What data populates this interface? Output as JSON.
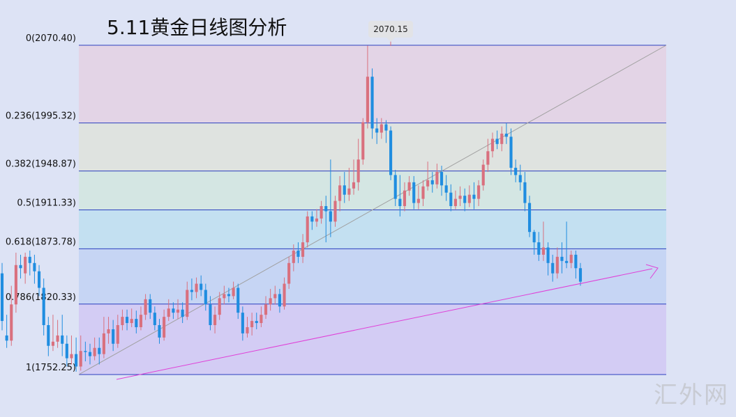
{
  "chart_data": {
    "type": "candlestick",
    "title": "5.11黄金日线图分析",
    "peak_label": "2070.15",
    "ylim": [
      1752.25,
      2070.4
    ],
    "fib_levels": [
      {
        "ratio": 0,
        "price": 2070.4,
        "label": "0(2070.40)",
        "band_color": "#e3d4e6"
      },
      {
        "ratio": 0.236,
        "price": 1995.32,
        "label": "0.236(1995.32)",
        "band_color": "#dfe3e0"
      },
      {
        "ratio": 0.382,
        "price": 1948.87,
        "label": "0.382(1948.87)",
        "band_color": "#d4e6e3"
      },
      {
        "ratio": 0.5,
        "price": 1911.33,
        "label": "0.5(1911.33)",
        "band_color": "#c3e0f1"
      },
      {
        "ratio": 0.618,
        "price": 1873.78,
        "label": "0.618(1873.78)",
        "band_color": "#c6d5f4"
      },
      {
        "ratio": 0.786,
        "price": 1820.33,
        "label": "0.786(1820.33)",
        "band_color": "#d3ccf4"
      },
      {
        "ratio": 1,
        "price": 1752.25,
        "label": "1(1752.25)",
        "band_color": null
      }
    ],
    "colors": {
      "up": "#d9707e",
      "down": "#1f8de0",
      "fib_line": "#2b3fbf",
      "trendline": "#e040d8",
      "diagonal": "#a0a0a0"
    },
    "candles": [
      [
        1850,
        1804,
        1860,
        1795
      ],
      [
        1790,
        1785,
        1810,
        1778
      ],
      [
        1785,
        1820,
        1838,
        1780
      ],
      [
        1820,
        1858,
        1870,
        1812
      ],
      [
        1858,
        1855,
        1868,
        1845
      ],
      [
        1850,
        1866,
        1870,
        1840
      ],
      [
        1866,
        1860,
        1872,
        1848
      ],
      [
        1860,
        1852,
        1868,
        1840
      ],
      [
        1852,
        1836,
        1858,
        1828
      ],
      [
        1836,
        1800,
        1845,
        1790
      ],
      [
        1800,
        1780,
        1808,
        1770
      ],
      [
        1780,
        1784,
        1810,
        1775
      ],
      [
        1784,
        1790,
        1805,
        1778
      ],
      [
        1790,
        1782,
        1810,
        1770
      ],
      [
        1782,
        1768,
        1790,
        1760
      ],
      [
        1768,
        1772,
        1790,
        1762
      ],
      [
        1772,
        1760,
        1788,
        1755
      ],
      [
        1760,
        1775,
        1790,
        1756
      ],
      [
        1775,
        1774,
        1784,
        1765
      ],
      [
        1774,
        1770,
        1782,
        1762
      ],
      [
        1770,
        1778,
        1788,
        1766
      ],
      [
        1778,
        1772,
        1788,
        1762
      ],
      [
        1772,
        1792,
        1808,
        1768
      ],
      [
        1792,
        1796,
        1808,
        1782
      ],
      [
        1796,
        1782,
        1805,
        1775
      ],
      [
        1782,
        1800,
        1810,
        1778
      ],
      [
        1800,
        1808,
        1815,
        1795
      ],
      [
        1808,
        1802,
        1815,
        1795
      ],
      [
        1802,
        1806,
        1816,
        1798
      ],
      [
        1806,
        1798,
        1814,
        1792
      ],
      [
        1798,
        1810,
        1818,
        1795
      ],
      [
        1810,
        1825,
        1830,
        1805
      ],
      [
        1825,
        1812,
        1830,
        1806
      ],
      [
        1812,
        1800,
        1818,
        1795
      ],
      [
        1800,
        1788,
        1806,
        1782
      ],
      [
        1788,
        1808,
        1815,
        1785
      ],
      [
        1808,
        1816,
        1825,
        1804
      ],
      [
        1816,
        1812,
        1822,
        1806
      ],
      [
        1812,
        1815,
        1825,
        1806
      ],
      [
        1815,
        1808,
        1822,
        1802
      ],
      [
        1808,
        1834,
        1842,
        1805
      ],
      [
        1834,
        1832,
        1845,
        1824
      ],
      [
        1832,
        1840,
        1846,
        1826
      ],
      [
        1840,
        1834,
        1848,
        1828
      ],
      [
        1834,
        1820,
        1840,
        1814
      ],
      [
        1820,
        1800,
        1828,
        1795
      ],
      [
        1800,
        1810,
        1818,
        1792
      ],
      [
        1810,
        1826,
        1832,
        1805
      ],
      [
        1826,
        1830,
        1838,
        1820
      ],
      [
        1830,
        1828,
        1836,
        1822
      ],
      [
        1828,
        1836,
        1842,
        1825
      ],
      [
        1836,
        1812,
        1840,
        1806
      ],
      [
        1812,
        1792,
        1818,
        1785
      ],
      [
        1792,
        1798,
        1808,
        1788
      ],
      [
        1798,
        1804,
        1812,
        1790
      ],
      [
        1804,
        1802,
        1812,
        1796
      ],
      [
        1802,
        1810,
        1818,
        1798
      ],
      [
        1810,
        1820,
        1828,
        1806
      ],
      [
        1820,
        1826,
        1835,
        1814
      ],
      [
        1826,
        1830,
        1838,
        1820
      ],
      [
        1830,
        1818,
        1835,
        1812
      ],
      [
        1818,
        1840,
        1846,
        1815
      ],
      [
        1840,
        1860,
        1866,
        1835
      ],
      [
        1860,
        1872,
        1878,
        1852
      ],
      [
        1872,
        1866,
        1880,
        1860
      ],
      [
        1866,
        1880,
        1888,
        1860
      ],
      [
        1880,
        1905,
        1910,
        1875
      ],
      [
        1905,
        1900,
        1910,
        1892
      ],
      [
        1900,
        1903,
        1912,
        1895
      ],
      [
        1903,
        1915,
        1920,
        1898
      ],
      [
        1915,
        1910,
        1925,
        1880
      ],
      [
        1910,
        1900,
        1960,
        1885
      ],
      [
        1900,
        1920,
        1925,
        1895
      ],
      [
        1920,
        1935,
        1944,
        1910
      ],
      [
        1935,
        1926,
        1948,
        1918
      ],
      [
        1926,
        1932,
        1952,
        1920
      ],
      [
        1932,
        1938,
        1960,
        1926
      ],
      [
        1938,
        1960,
        1980,
        1930
      ],
      [
        1960,
        1996,
        2000,
        1955
      ],
      [
        1996,
        2040,
        2070,
        1990
      ],
      [
        2040,
        1990,
        2048,
        1980
      ],
      [
        1990,
        1986,
        2000,
        1975
      ],
      [
        1986,
        1994,
        2000,
        1980
      ],
      [
        1994,
        1988,
        1998,
        1976
      ],
      [
        1988,
        1945,
        1992,
        1940
      ],
      [
        1945,
        1922,
        1950,
        1915
      ],
      [
        1922,
        1915,
        1945,
        1905
      ],
      [
        1915,
        1930,
        1938,
        1910
      ],
      [
        1930,
        1938,
        1944,
        1925
      ],
      [
        1938,
        1918,
        1944,
        1912
      ],
      [
        1918,
        1922,
        1935,
        1912
      ],
      [
        1922,
        1934,
        1940,
        1915
      ],
      [
        1934,
        1940,
        1958,
        1930
      ],
      [
        1940,
        1936,
        1948,
        1928
      ],
      [
        1936,
        1948,
        1956,
        1932
      ],
      [
        1948,
        1935,
        1954,
        1925
      ],
      [
        1935,
        1928,
        1945,
        1920
      ],
      [
        1928,
        1915,
        1936,
        1910
      ],
      [
        1915,
        1922,
        1930,
        1912
      ],
      [
        1922,
        1925,
        1934,
        1915
      ],
      [
        1925,
        1918,
        1932,
        1910
      ],
      [
        1918,
        1926,
        1935,
        1914
      ],
      [
        1926,
        1922,
        1938,
        1912
      ],
      [
        1922,
        1935,
        1940,
        1915
      ],
      [
        1935,
        1955,
        1960,
        1930
      ],
      [
        1955,
        1968,
        1980,
        1948
      ],
      [
        1968,
        1980,
        1986,
        1962
      ],
      [
        1980,
        1975,
        1988,
        1970
      ],
      [
        1975,
        1985,
        1992,
        1968
      ],
      [
        1985,
        1982,
        1995,
        1975
      ],
      [
        1982,
        1952,
        1990,
        1945
      ],
      [
        1952,
        1945,
        1960,
        1938
      ],
      [
        1945,
        1938,
        1955,
        1930
      ],
      [
        1938,
        1918,
        1948,
        1910
      ],
      [
        1918,
        1890,
        1925,
        1885
      ],
      [
        1890,
        1880,
        1892,
        1868
      ],
      [
        1880,
        1868,
        1890,
        1862
      ],
      [
        1868,
        1875,
        1900,
        1862
      ],
      [
        1875,
        1860,
        1880,
        1848
      ],
      [
        1860,
        1850,
        1868,
        1842
      ],
      [
        1850,
        1866,
        1875,
        1845
      ],
      [
        1866,
        1862,
        1880,
        1850
      ],
      [
        1862,
        1860,
        1900,
        1855
      ],
      [
        1860,
        1868,
        1872,
        1855
      ],
      [
        1868,
        1855,
        1872,
        1845
      ],
      [
        1855,
        1842,
        1860,
        1838
      ]
    ]
  },
  "watermark": "汇外网"
}
